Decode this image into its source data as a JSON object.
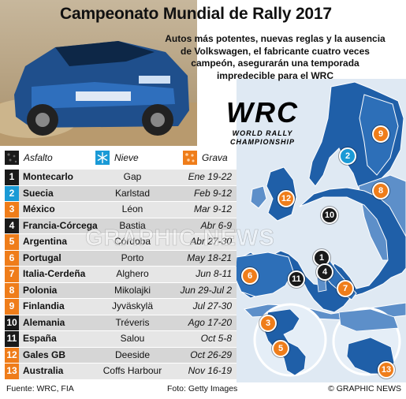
{
  "header": {
    "title": "Campeonato Mundial de Rally 2017",
    "intro": "Autos más potentes, nuevas reglas y la ausencia de Volkswagen, el fabricante cuatro veces campeón, asegurarán una temporada impredecible para el WRC"
  },
  "logo": {
    "brand": "WRC",
    "line1": "WORLD RALLY",
    "line2": "CHAMPIONSHIP"
  },
  "legend": [
    {
      "label": "Asfalto",
      "color": "#1a1a1a"
    },
    {
      "label": "Nieve",
      "color": "#1a9ad6"
    },
    {
      "label": "Grava",
      "color": "#ef7d1a"
    }
  ],
  "calendar": [
    {
      "num": "1",
      "country": "Montecarlo",
      "city": "Gap",
      "dates": "Ene 19-22",
      "surface": "asphalt"
    },
    {
      "num": "2",
      "country": "Suecia",
      "city": "Karlstad",
      "dates": "Feb 9-12",
      "surface": "snow"
    },
    {
      "num": "3",
      "country": "México",
      "city": "Léon",
      "dates": "Mar 9-12",
      "surface": "gravel"
    },
    {
      "num": "4",
      "country": "Francia-Córcega",
      "city": "Bastia",
      "dates": "Abr 6-9",
      "surface": "asphalt"
    },
    {
      "num": "5",
      "country": "Argentina",
      "city": "Córdoba",
      "dates": "Abr 27-30",
      "surface": "gravel"
    },
    {
      "num": "6",
      "country": "Portugal",
      "city": "Porto",
      "dates": "May 18-21",
      "surface": "gravel"
    },
    {
      "num": "7",
      "country": "Italia-Cerdeña",
      "city": "Alghero",
      "dates": "Jun 8-11",
      "surface": "gravel"
    },
    {
      "num": "8",
      "country": "Polonia",
      "city": "Mikolajki",
      "dates": "Jun 29-Jul 2",
      "surface": "gravel"
    },
    {
      "num": "9",
      "country": "Finlandia",
      "city": "Jyväskylä",
      "dates": "Jul 27-30",
      "surface": "gravel"
    },
    {
      "num": "10",
      "country": "Alemania",
      "city": "Tréveris",
      "dates": "Ago 17-20",
      "surface": "asphalt"
    },
    {
      "num": "11",
      "country": "España",
      "city": "Salou",
      "dates": "Oct 5-8",
      "surface": "asphalt"
    },
    {
      "num": "12",
      "country": "Gales GB",
      "city": "Deeside",
      "dates": "Oct 26-29",
      "surface": "gravel"
    },
    {
      "num": "13",
      "country": "Australia",
      "city": "Coffs Harbour",
      "dates": "Nov 16-19",
      "surface": "gravel"
    }
  ],
  "surface_colors": {
    "asphalt": "#1a1a1a",
    "snow": "#1a9ad6",
    "gravel": "#ef7d1a"
  },
  "map_colors": {
    "land": "#1f5fa8",
    "land_light": "#5d8fc9",
    "sea": "#d9e6f2"
  },
  "markers": [
    {
      "num": "1",
      "surface": "asphalt"
    },
    {
      "num": "2",
      "surface": "snow"
    },
    {
      "num": "3",
      "surface": "gravel"
    },
    {
      "num": "4",
      "surface": "asphalt"
    },
    {
      "num": "5",
      "surface": "gravel"
    },
    {
      "num": "6",
      "surface": "gravel"
    },
    {
      "num": "7",
      "surface": "gravel"
    },
    {
      "num": "8",
      "surface": "gravel"
    },
    {
      "num": "9",
      "surface": "gravel"
    },
    {
      "num": "10",
      "surface": "asphalt"
    },
    {
      "num": "11",
      "surface": "asphalt"
    },
    {
      "num": "12",
      "surface": "gravel"
    },
    {
      "num": "13",
      "surface": "gravel"
    }
  ],
  "footer": {
    "source": "Fuente: WRC, FIA",
    "credit": "Foto: Getty Images",
    "agency": "© GRAPHIC NEWS"
  },
  "watermark": "GRAPHIC NEWS"
}
